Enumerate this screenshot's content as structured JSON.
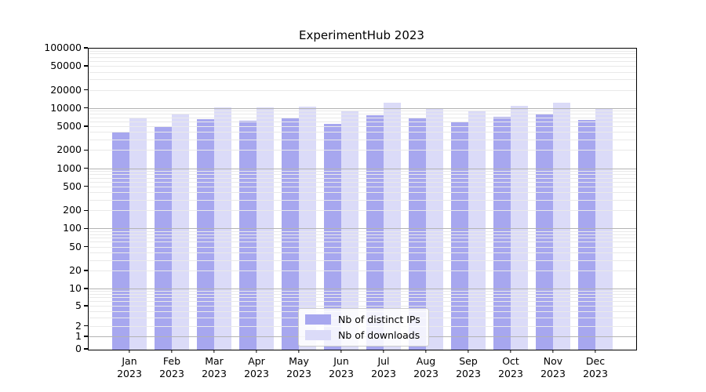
{
  "title": "ExperimentHub 2023",
  "chart_data": {
    "type": "bar",
    "title": "ExperimentHub 2023",
    "categories": [
      "Jan 2023",
      "Feb 2023",
      "Mar 2023",
      "Apr 2023",
      "May 2023",
      "Jun 2023",
      "Jul 2023",
      "Aug 2023",
      "Sep 2023",
      "Oct 2023",
      "Nov 2023",
      "Dec 2023"
    ],
    "series": [
      {
        "name": "Nb of distinct IPs",
        "color": "#a7a7ef",
        "values": [
          4200,
          5100,
          6800,
          6400,
          7000,
          5700,
          7800,
          7200,
          6000,
          7300,
          8000,
          6500
        ]
      },
      {
        "name": "Nb of downloads",
        "color": "#dbdbf8",
        "values": [
          7200,
          8200,
          10600,
          10600,
          10800,
          9100,
          12700,
          10200,
          9100,
          11100,
          12600,
          9800
        ]
      }
    ],
    "xlabel": "",
    "ylabel": "",
    "ylim": [
      0,
      100000
    ],
    "yscale": "pseudo-log (asinh)",
    "yticks": [
      0,
      1,
      2,
      5,
      10,
      20,
      50,
      100,
      200,
      500,
      1000,
      2000,
      5000,
      10000,
      20000,
      50000,
      100000
    ],
    "grid": true,
    "legend_position": "lower center"
  },
  "colors": {
    "grid_minor": "#e9e9e9",
    "grid_major": "#b3b3b3",
    "axis": "#000000"
  }
}
